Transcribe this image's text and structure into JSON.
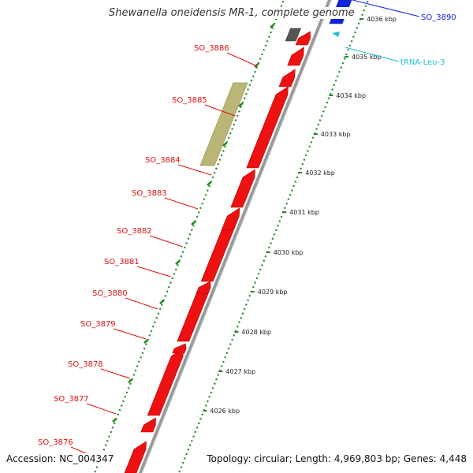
{
  "title": "Shewanella oneidensis MR-1, complete genome",
  "accession": "Accession: NC_004347",
  "topology": "Topology: circular; Length: 4,969,803 bp; Genes: 4,448",
  "colors": {
    "cds": "#ee1111",
    "cds_label": "#dd1111",
    "misc_feature": "#bbb677",
    "gene_gray": "#555555",
    "other_strand_gene": "#1122dd",
    "trna": "#22bbdd",
    "tick_dots": "#228822",
    "backbone": "#999999"
  },
  "ticks": [
    "4026 kbp",
    "4027 kbp",
    "4028 kbp",
    "4029 kbp",
    "4030 kbp",
    "4031 kbp",
    "4032 kbp",
    "4033 kbp",
    "4034 kbp",
    "4035 kbp",
    "4036 kbp"
  ],
  "gene_labels": [
    {
      "name": "SO_3876",
      "color_key": "cds_label"
    },
    {
      "name": "SO_3877",
      "color_key": "cds_label"
    },
    {
      "name": "SO_3878",
      "color_key": "cds_label"
    },
    {
      "name": "SO_3879",
      "color_key": "cds_label"
    },
    {
      "name": "SO_3880",
      "color_key": "cds_label"
    },
    {
      "name": "SO_3881",
      "color_key": "cds_label"
    },
    {
      "name": "SO_3882",
      "color_key": "cds_label"
    },
    {
      "name": "SO_3883",
      "color_key": "cds_label"
    },
    {
      "name": "SO_3884",
      "color_key": "cds_label"
    },
    {
      "name": "SO_3885",
      "color_key": "cds_label"
    },
    {
      "name": "SO_3886",
      "color_key": "cds_label"
    },
    {
      "name": "SO_3890",
      "color_key": "other_strand_gene"
    },
    {
      "name": "tRNA-Leu-3",
      "color_key": "trna"
    }
  ]
}
